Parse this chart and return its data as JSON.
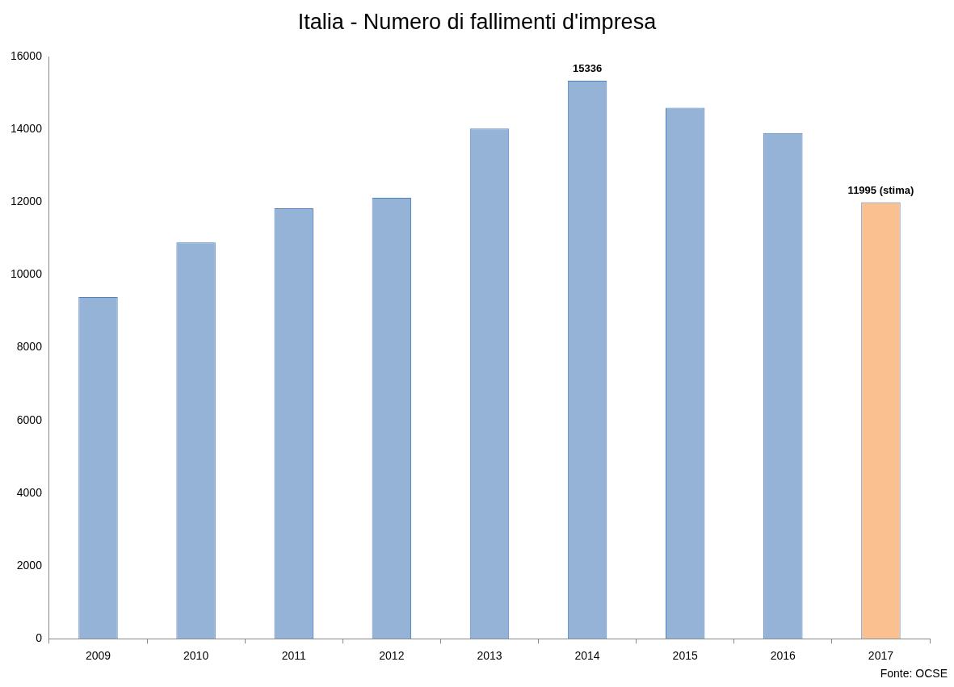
{
  "chart_data": {
    "type": "bar",
    "title": "Italia - Numero di fallimenti d'impresa",
    "categories": [
      "2009",
      "2010",
      "2011",
      "2012",
      "2013",
      "2014",
      "2015",
      "2016",
      "2017"
    ],
    "values": [
      9390,
      10890,
      11830,
      12120,
      14020,
      15336,
      14590,
      13900,
      11995
    ],
    "colors": [
      "#95b3d7",
      "#95b3d7",
      "#95b3d7",
      "#95b3d7",
      "#95b3d7",
      "#95b3d7",
      "#95b3d7",
      "#95b3d7",
      "#fac090"
    ],
    "value_labels": [
      null,
      null,
      null,
      null,
      null,
      "15336",
      null,
      null,
      "11995 (stima)"
    ],
    "ylim": [
      0,
      16000
    ],
    "yticks": [
      0,
      2000,
      4000,
      6000,
      8000,
      10000,
      12000,
      14000,
      16000
    ],
    "grid": false,
    "legend": false,
    "annotations": [
      "Fonte: OCSE"
    ]
  }
}
